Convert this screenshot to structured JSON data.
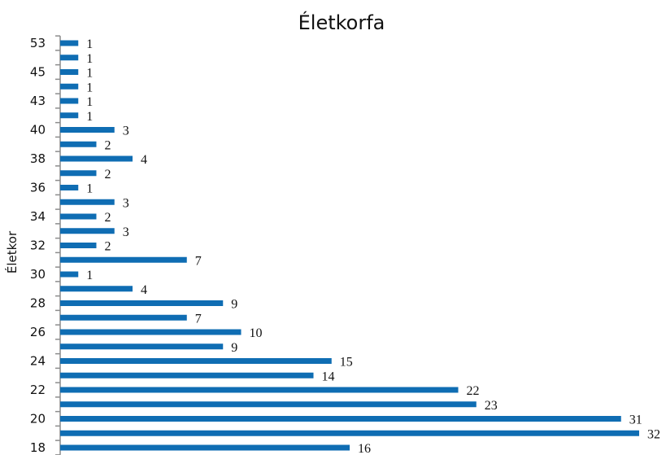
{
  "chart_data": {
    "type": "bar",
    "orientation": "horizontal",
    "title": "Életkorfa",
    "xlabel": "",
    "ylabel": "Életkor",
    "xlim": [
      0,
      32
    ],
    "grid": false,
    "bar_color": "#0f6db3",
    "axis_color": "#8c8c8c",
    "categories": [
      "53",
      "",
      "45",
      "",
      "43",
      "",
      "40",
      "",
      "38",
      "",
      "36",
      "",
      "34",
      "",
      "32",
      "",
      "30",
      "",
      "28",
      "",
      "26",
      "",
      "24",
      "",
      "22",
      "",
      "20",
      "",
      "18"
    ],
    "values": [
      1,
      1,
      1,
      1,
      1,
      1,
      3,
      2,
      4,
      2,
      1,
      3,
      2,
      3,
      2,
      7,
      1,
      4,
      9,
      7,
      10,
      9,
      15,
      14,
      22,
      23,
      31,
      32,
      16
    ]
  }
}
